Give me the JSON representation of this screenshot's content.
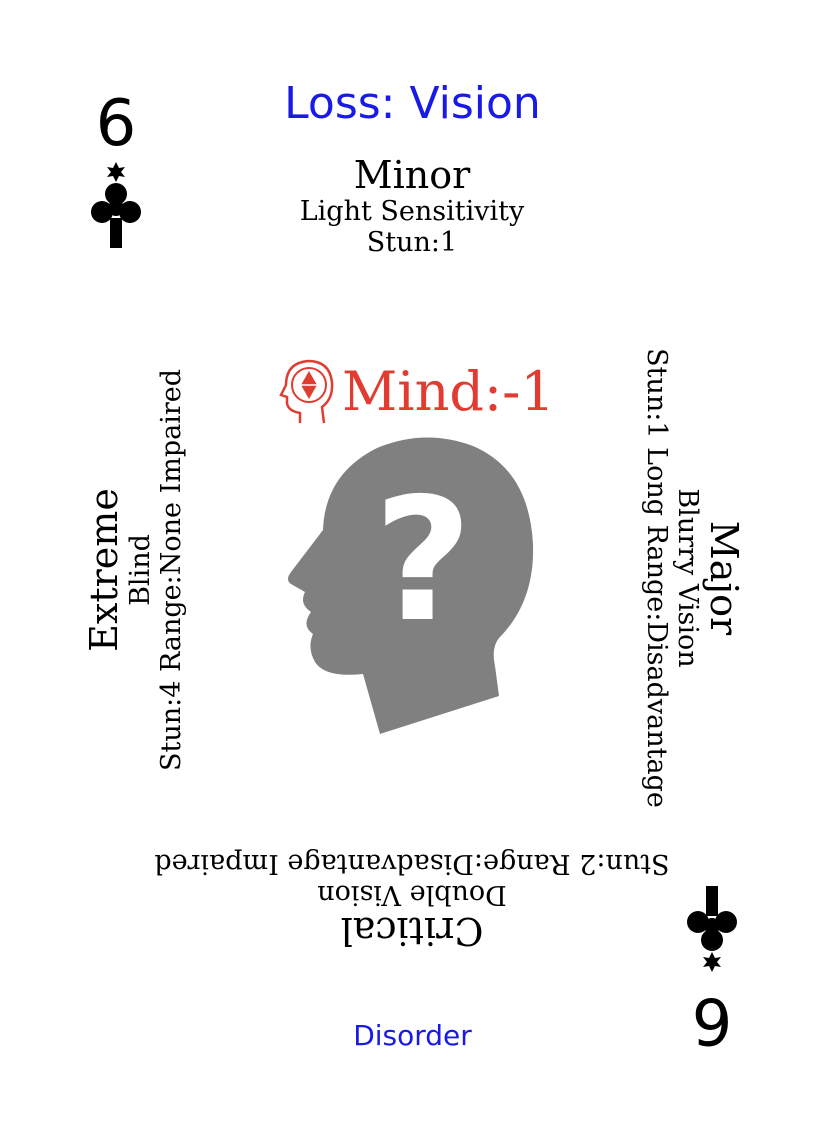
{
  "card": {
    "title": "Loss: Vision",
    "category": "Disorder",
    "rank": "6",
    "suit_icon": "club-icon",
    "title_color": "#1a1ae6",
    "category_color": "#1a1ae6",
    "stat_color": "#e03c31",
    "head_color": "#808080"
  },
  "stat": {
    "label": "Mind:-1",
    "icon": "mind-head-icon"
  },
  "center_icon": "head-question-icon",
  "severities": {
    "minor": {
      "name": "Minor",
      "desc": "Light Sensitivity",
      "effect": "Stun:1"
    },
    "major": {
      "name": "Major",
      "desc": "Blurry Vision",
      "effect": "Stun:1 Long Range:Disadvantage"
    },
    "critical": {
      "name": "Critical",
      "desc": "Double Vision",
      "effect": "Stun:2 Range:Disadvantage Impaired"
    },
    "extreme": {
      "name": "Extreme",
      "desc": "Blind",
      "effect": "Stun:4 Range:None Impaired"
    }
  }
}
